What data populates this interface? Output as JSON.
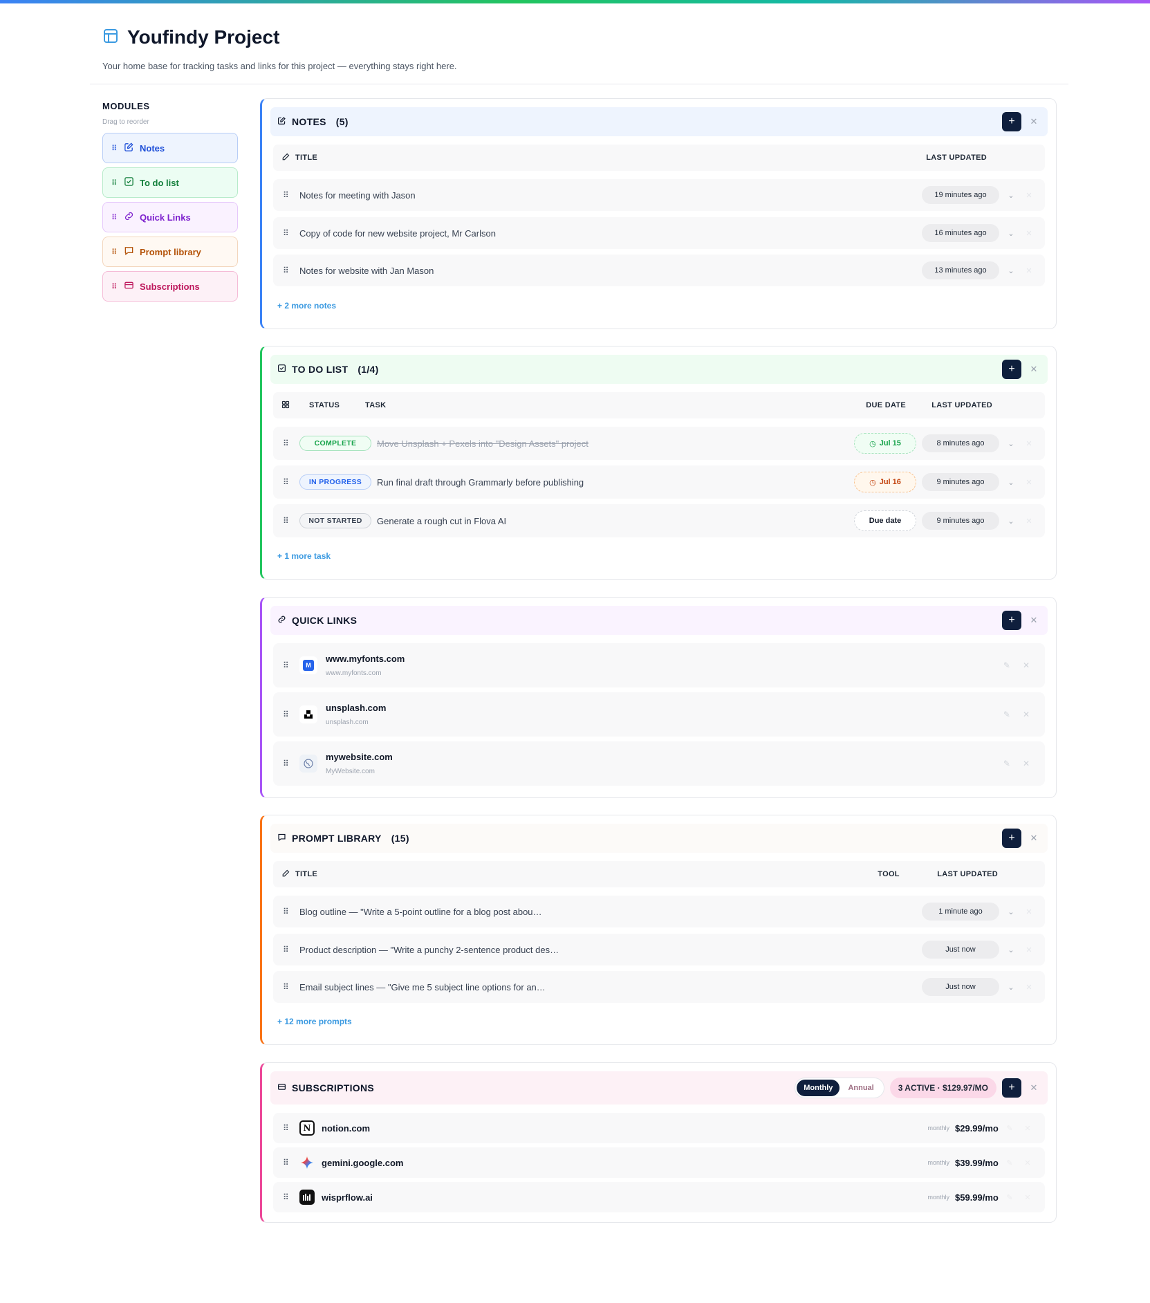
{
  "header": {
    "title": "Youfindy Project",
    "subtitle": "Your home base for tracking tasks and links for this project — everything stays right here."
  },
  "sidebar": {
    "label": "MODULES",
    "hint": "Drag to reorder",
    "items": [
      {
        "label": "Notes",
        "icon": "pencil-square-icon"
      },
      {
        "label": "To do list",
        "icon": "check-square-icon"
      },
      {
        "label": "Quick Links",
        "icon": "link-icon"
      },
      {
        "label": "Prompt library",
        "icon": "chat-bubble-icon"
      },
      {
        "label": "Subscriptions",
        "icon": "credit-card-icon"
      }
    ]
  },
  "colors": {
    "notes": "#3b82f6",
    "todo": "#22c55e",
    "links": "#a855f7",
    "prompts": "#f97316",
    "subs": "#ec4899",
    "button_dark": "#0f1f3d"
  },
  "notes": {
    "title": "NOTES",
    "count": "(5)",
    "columns": {
      "title": "TITLE",
      "updated": "LAST UPDATED"
    },
    "rows": [
      {
        "title": "Notes for meeting with Jason",
        "updated": "19 minutes ago"
      },
      {
        "title": "Copy of code for new website project, Mr Carlson",
        "updated": "16 minutes ago"
      },
      {
        "title": "Notes for website with Jan Mason",
        "updated": "13 minutes ago"
      }
    ],
    "more": "+ 2 more notes"
  },
  "todo": {
    "title": "TO DO LIST",
    "count": "(1/4)",
    "columns": {
      "status": "STATUS",
      "task": "TASK",
      "due": "DUE DATE",
      "updated": "LAST UPDATED"
    },
    "rows": [
      {
        "status": "COMPLETE",
        "task": "Move Unsplash + Pexels into \"Design Assets\" project",
        "due": "Jul 15",
        "updated": "8 minutes ago"
      },
      {
        "status": "IN PROGRESS",
        "task": "Run final draft through Grammarly before publishing",
        "due": "Jul 16",
        "updated": "9 minutes ago"
      },
      {
        "status": "NOT STARTED",
        "task": "Generate a rough cut in Flova AI",
        "due": "Due date",
        "updated": "9 minutes ago"
      }
    ],
    "more": "+ 1 more task"
  },
  "links": {
    "title": "QUICK LINKS",
    "rows": [
      {
        "name": "www.myfonts.com",
        "url": "www.myfonts.com"
      },
      {
        "name": "unsplash.com",
        "url": "unsplash.com"
      },
      {
        "name": "mywebsite.com",
        "url": "MyWebsite.com"
      }
    ]
  },
  "prompts": {
    "title": "PROMPT LIBRARY",
    "count": "(15)",
    "columns": {
      "title": "TITLE",
      "tool": "TOOL",
      "updated": "LAST UPDATED"
    },
    "rows": [
      {
        "title": "Blog outline — \"Write a 5-point outline for a blog post abou…",
        "updated": "1 minute ago"
      },
      {
        "title": "Product description — \"Write a punchy 2-sentence product des…",
        "updated": "Just now"
      },
      {
        "title": "Email subject lines — \"Give me 5 subject line options for an…",
        "updated": "Just now"
      }
    ],
    "more": "+ 12 more prompts"
  },
  "subs": {
    "title": "SUBSCRIPTIONS",
    "toggle": {
      "monthly": "Monthly",
      "annual": "Annual"
    },
    "summary": "3 ACTIVE · $129.97/MO",
    "rows": [
      {
        "name": "notion.com",
        "cycle": "monthly",
        "price": "$29.99/mo"
      },
      {
        "name": "gemini.google.com",
        "cycle": "monthly",
        "price": "$39.99/mo"
      },
      {
        "name": "wisprflow.ai",
        "cycle": "monthly",
        "price": "$59.99/mo"
      }
    ]
  }
}
